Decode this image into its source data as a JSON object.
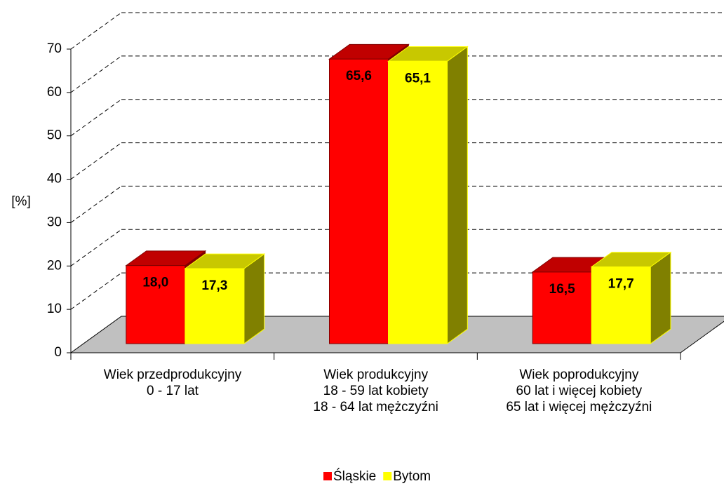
{
  "chart_data": {
    "type": "bar3d",
    "y_label": "[%]",
    "categories": [
      "Wiek przedprodukcyjny\n0 - 17 lat",
      "Wiek produkcyjny\n18 - 59 lat kobiety\n18 - 64 lat mężczyźni",
      "Wiek poprodukcyjny\n60 lat i więcej kobiety\n65 lat i więcej mężczyźni"
    ],
    "series": [
      {
        "name": "Śląskie",
        "color": "#ff0000",
        "top_color": "#c00000",
        "side_color": "#800000",
        "values": [
          18.0,
          65.6,
          16.5
        ],
        "value_labels": [
          "18,0",
          "65,6",
          "16,5"
        ]
      },
      {
        "name": "Bytom",
        "color": "#ffff00",
        "top_color": "#c8c800",
        "side_color": "#808000",
        "values": [
          17.3,
          65.1,
          17.7
        ],
        "value_labels": [
          "17,3",
          "65,1",
          "17,7"
        ]
      }
    ],
    "ylim": [
      0,
      70
    ],
    "yticks": [
      0,
      10,
      20,
      30,
      40,
      50,
      60,
      70
    ],
    "grid": true,
    "legend": "bottom"
  }
}
